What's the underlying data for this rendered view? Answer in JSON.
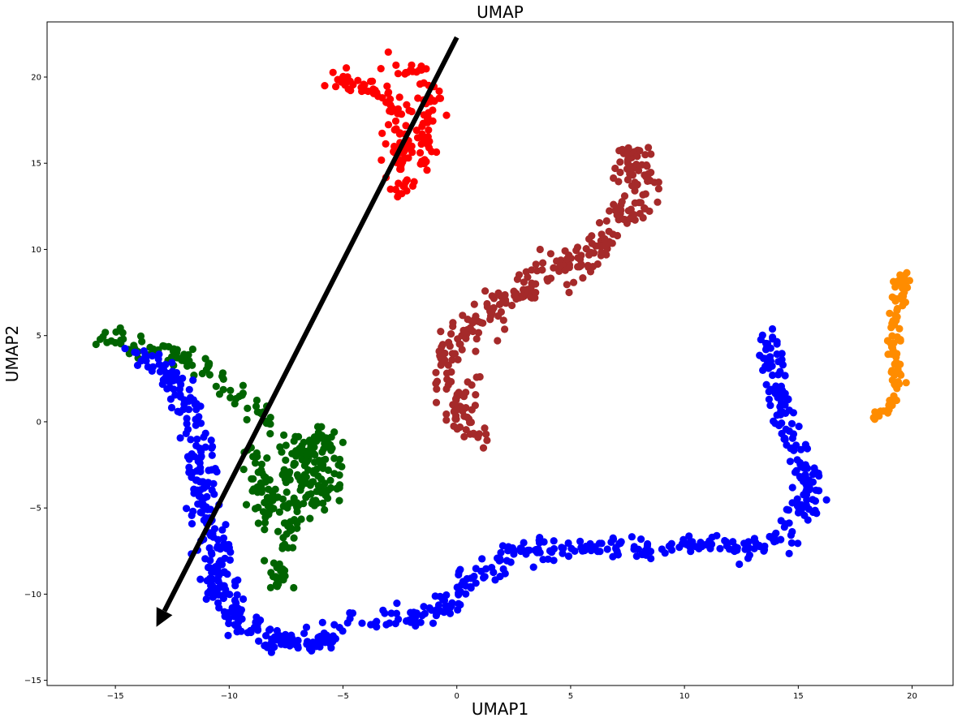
{
  "chart_data": {
    "type": "scatter",
    "title": "UMAP",
    "xlabel": "UMAP1",
    "ylabel": "UMAP2",
    "xlim": [
      -18,
      21.8
    ],
    "ylim": [
      -15.3,
      23.2
    ],
    "xticks": [
      -15,
      -10,
      -5,
      0,
      5,
      10,
      15,
      20
    ],
    "yticks": [
      -15,
      -10,
      -5,
      0,
      5,
      10,
      15,
      20
    ],
    "grid": false,
    "legend": "none",
    "series": [
      {
        "color": "#ff0000",
        "path": [
          [
            -5.4,
            19.8
          ],
          [
            -3.6,
            19.6
          ],
          [
            -2.6,
            17.5
          ],
          [
            -2.4,
            15.0
          ],
          [
            -2.5,
            13.0
          ]
        ],
        "extra_path": [
          [
            -2.8,
            21.0
          ],
          [
            -1.6,
            20.0
          ],
          [
            -1.1,
            18.5
          ],
          [
            -1.5,
            16.0
          ],
          [
            -1.6,
            14.5
          ]
        ],
        "spread": 0.55,
        "count": 160
      },
      {
        "color": "#a52a2a",
        "path": [
          [
            0.8,
            -1.0
          ],
          [
            0.2,
            0.5
          ],
          [
            -0.2,
            2.5
          ],
          [
            -0.3,
            4.0
          ],
          [
            0.5,
            5.6
          ],
          [
            2.0,
            7.0
          ],
          [
            4.0,
            8.2
          ],
          [
            5.5,
            9.8
          ],
          [
            6.8,
            10.8
          ],
          [
            7.7,
            12.5
          ],
          [
            7.9,
            14.5
          ],
          [
            7.5,
            16.0
          ]
        ],
        "spread": 0.75,
        "count": 320
      },
      {
        "color": "#ff8c00",
        "path": [
          [
            18.2,
            0.2
          ],
          [
            19.0,
            0.8
          ],
          [
            19.4,
            2.5
          ],
          [
            19.2,
            4.5
          ],
          [
            19.4,
            6.5
          ],
          [
            19.6,
            8.8
          ]
        ],
        "spread": 0.28,
        "count": 90
      },
      {
        "color": "#006400",
        "path": [
          [
            -15.8,
            5.0
          ],
          [
            -13.5,
            4.3
          ],
          [
            -11.5,
            3.6
          ],
          [
            -10.3,
            2.2
          ],
          [
            -9.0,
            0.8
          ],
          [
            -7.5,
            -1.0
          ],
          [
            -6.5,
            -2.5
          ],
          [
            -6.8,
            -4.5
          ],
          [
            -7.5,
            -6.5
          ],
          [
            -7.8,
            -8.2
          ],
          [
            -7.9,
            -9.8
          ]
        ],
        "extra_path": [
          [
            -9.0,
            -1.5
          ],
          [
            -8.6,
            -3.5
          ],
          [
            -8.3,
            -5.5
          ],
          [
            -6.0,
            -0.5
          ],
          [
            -5.7,
            -3.0
          ],
          [
            -6.0,
            -5.0
          ]
        ],
        "spread": 0.55,
        "count": 330
      },
      {
        "color": "#0000ff",
        "path": [
          [
            -14.0,
            4.0
          ],
          [
            -12.5,
            2.5
          ],
          [
            -11.6,
            0.5
          ],
          [
            -11.3,
            -2.0
          ],
          [
            -11.3,
            -4.5
          ],
          [
            -10.6,
            -6.8
          ],
          [
            -10.5,
            -9.5
          ],
          [
            -9.8,
            -11.5
          ],
          [
            -8.0,
            -12.7
          ],
          [
            -6.0,
            -12.8
          ],
          [
            -4.5,
            -11.8
          ],
          [
            -3.0,
            -11.2
          ],
          [
            -1.5,
            -11.5
          ],
          [
            -0.3,
            -10.5
          ],
          [
            0.8,
            -8.7
          ],
          [
            2.5,
            -7.5
          ],
          [
            4.5,
            -7.4
          ],
          [
            6.5,
            -7.2
          ],
          [
            8.5,
            -7.5
          ],
          [
            10.5,
            -7.0
          ],
          [
            12.5,
            -7.5
          ],
          [
            14.3,
            -6.8
          ],
          [
            15.2,
            -5.5
          ],
          [
            15.5,
            -3.8
          ],
          [
            15.0,
            -2.0
          ],
          [
            14.3,
            0.0
          ],
          [
            14.0,
            2.0
          ],
          [
            13.8,
            4.0
          ],
          [
            13.8,
            5.2
          ]
        ],
        "spread": 0.55,
        "count": 720
      }
    ],
    "annotations": [
      {
        "type": "arrow",
        "color": "#000000",
        "from": [
          0.0,
          22.3
        ],
        "to": [
          -13.2,
          -11.9
        ]
      }
    ]
  }
}
